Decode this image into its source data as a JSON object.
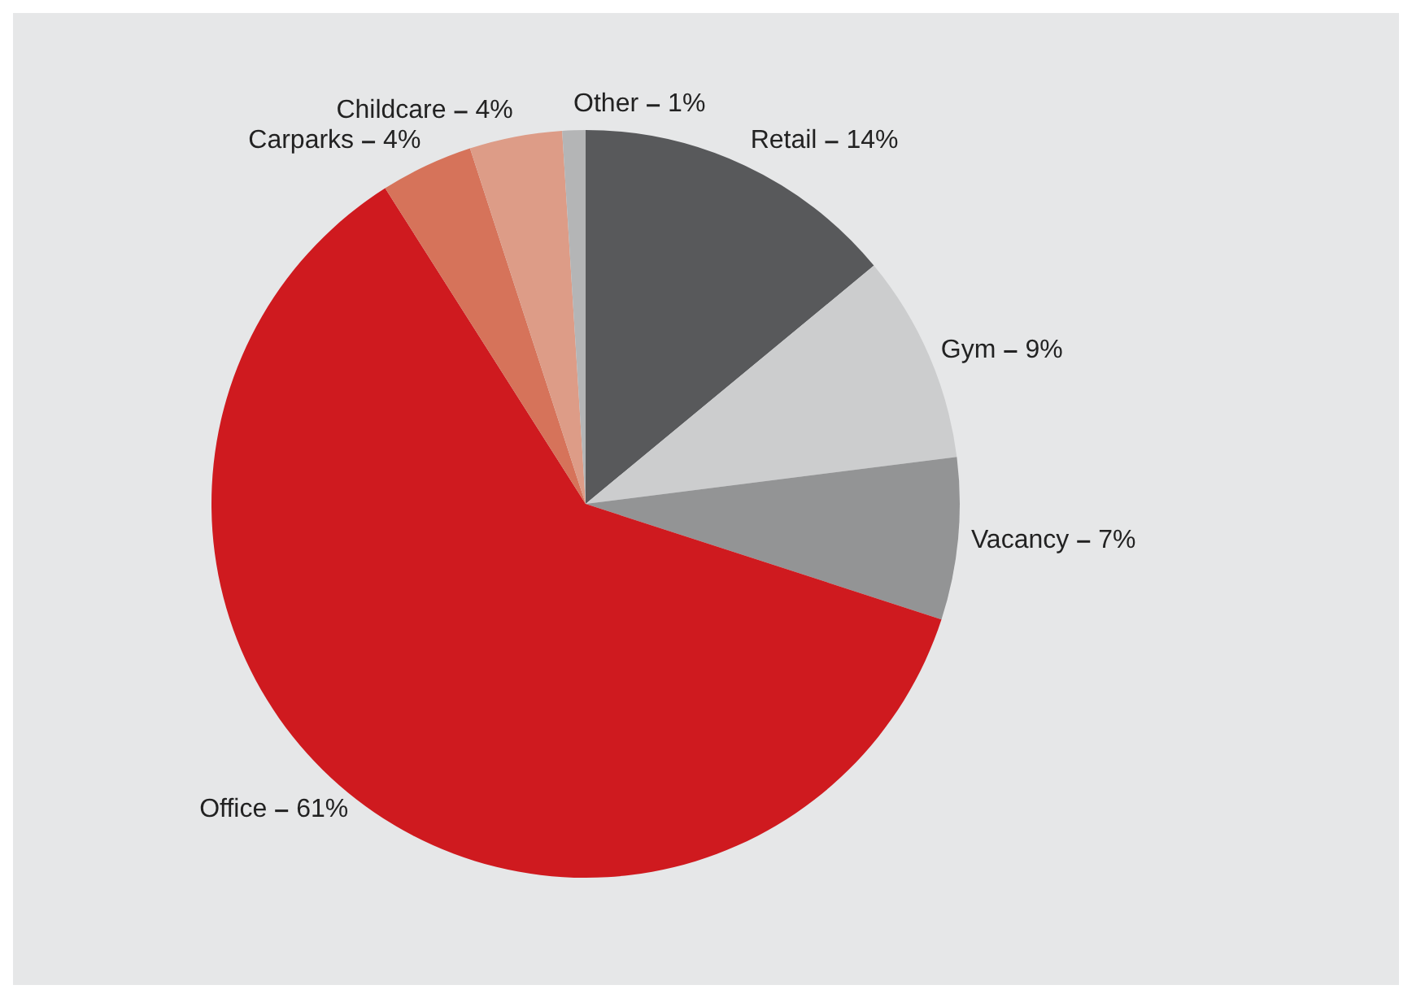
{
  "chart_data": {
    "type": "pie",
    "categories": [
      "Retail",
      "Gym",
      "Vacancy",
      "Office",
      "Carparks",
      "Childcare",
      "Other"
    ],
    "values": [
      14,
      9,
      7,
      61,
      4,
      4,
      1
    ],
    "colors": [
      "#58595b",
      "#cccdce",
      "#939495",
      "#cf1a1f",
      "#d6735a",
      "#dd9c87",
      "#b4b5b6"
    ],
    "value_labels": [
      "14%",
      "9%",
      "7%",
      "61%",
      "4%",
      "4%",
      "1%"
    ],
    "legend": false
  }
}
